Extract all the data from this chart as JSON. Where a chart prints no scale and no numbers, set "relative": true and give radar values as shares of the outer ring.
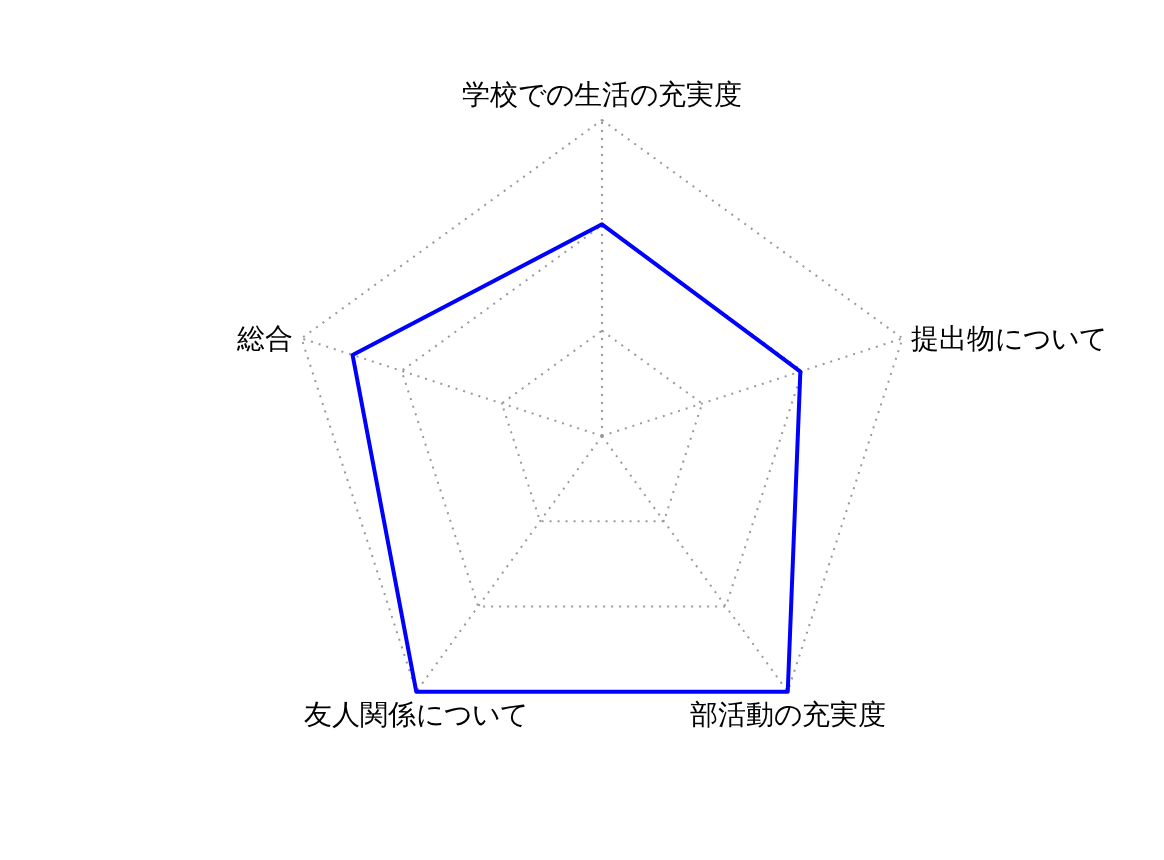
{
  "chart_data": {
    "type": "radar",
    "relative": true,
    "grid": true,
    "categories": [
      "学校での生活の充実度",
      "提出物について",
      "部活動の充実度",
      "友人関係について",
      "総合"
    ],
    "series": [
      {
        "color": "#0000ff",
        "values": [
          0.67,
          0.66,
          1,
          1,
          0.83
        ]
      }
    ]
  }
}
